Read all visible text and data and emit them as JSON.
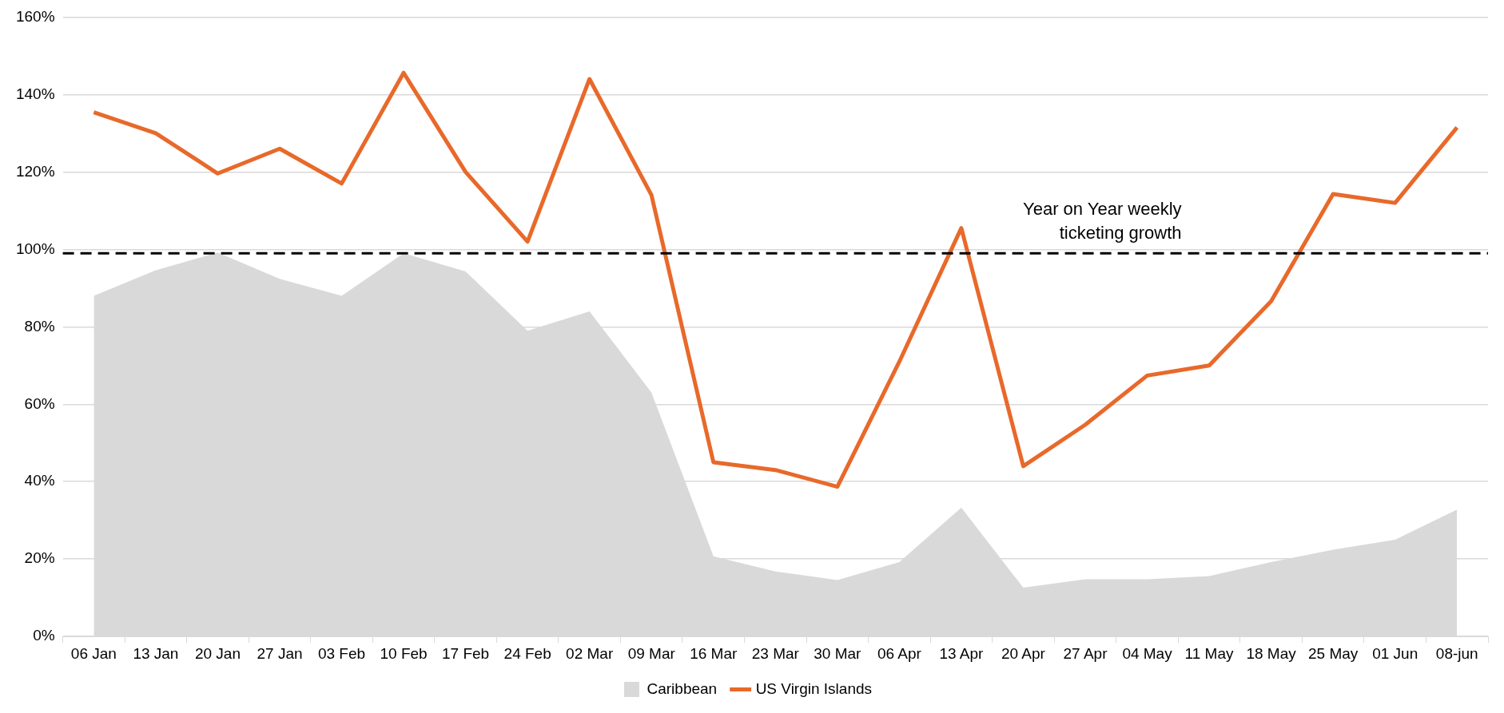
{
  "chart_data": {
    "type": "area",
    "categories": [
      "06 Jan",
      "13 Jan",
      "20 Jan",
      "27 Jan",
      "03 Feb",
      "10 Feb",
      "17 Feb",
      "24 Feb",
      "02 Mar",
      "09 Mar",
      "16 Mar",
      "23 Mar",
      "30 Mar",
      "06 Apr",
      "13 Apr",
      "20 Apr",
      "27 Apr",
      "04 May",
      "11 May",
      "18 May",
      "25 May",
      "01 Jun",
      "08-jun"
    ],
    "series": [
      {
        "name": "Caribbean",
        "color": "#d9d9d9",
        "values": [
          88,
          94.6,
          99.2,
          92.4,
          88,
          99,
          94.3,
          79,
          84,
          63,
          20.7,
          16.8,
          14.6,
          19.2,
          33.3,
          12.6,
          14.8,
          14.8,
          15.6,
          19.2,
          22.4,
          25,
          32.8
        ]
      },
      {
        "name": "US Virgin Islands",
        "type": "line",
        "color": "#e8692a",
        "values": [
          135.4,
          130,
          119.6,
          126,
          117,
          145.6,
          120,
          102,
          144,
          114,
          45,
          43,
          38.7,
          71,
          105.5,
          44,
          54.7,
          67.4,
          70,
          86.6,
          114.3,
          112,
          131.5
        ]
      }
    ],
    "ylim": [
      0,
      160
    ],
    "yticks": [
      {
        "value": 0,
        "label": "0%"
      },
      {
        "value": 20,
        "label": "20%"
      },
      {
        "value": 40,
        "label": "40%"
      },
      {
        "value": 60,
        "label": "60%"
      },
      {
        "value": 80,
        "label": "80%"
      },
      {
        "value": 100,
        "label": "100%"
      },
      {
        "value": 120,
        "label": "120%"
      },
      {
        "value": 140,
        "label": "140%"
      },
      {
        "value": 160,
        "label": "160%"
      }
    ],
    "ref_lines": [
      {
        "axis": "y",
        "value": 99,
        "label": "Year on Year weekly ticketing growth",
        "color": "#000000",
        "line_style": "dashed"
      }
    ],
    "grid": "y",
    "legend": "bottom",
    "marker": "none",
    "line_style": "solid"
  }
}
